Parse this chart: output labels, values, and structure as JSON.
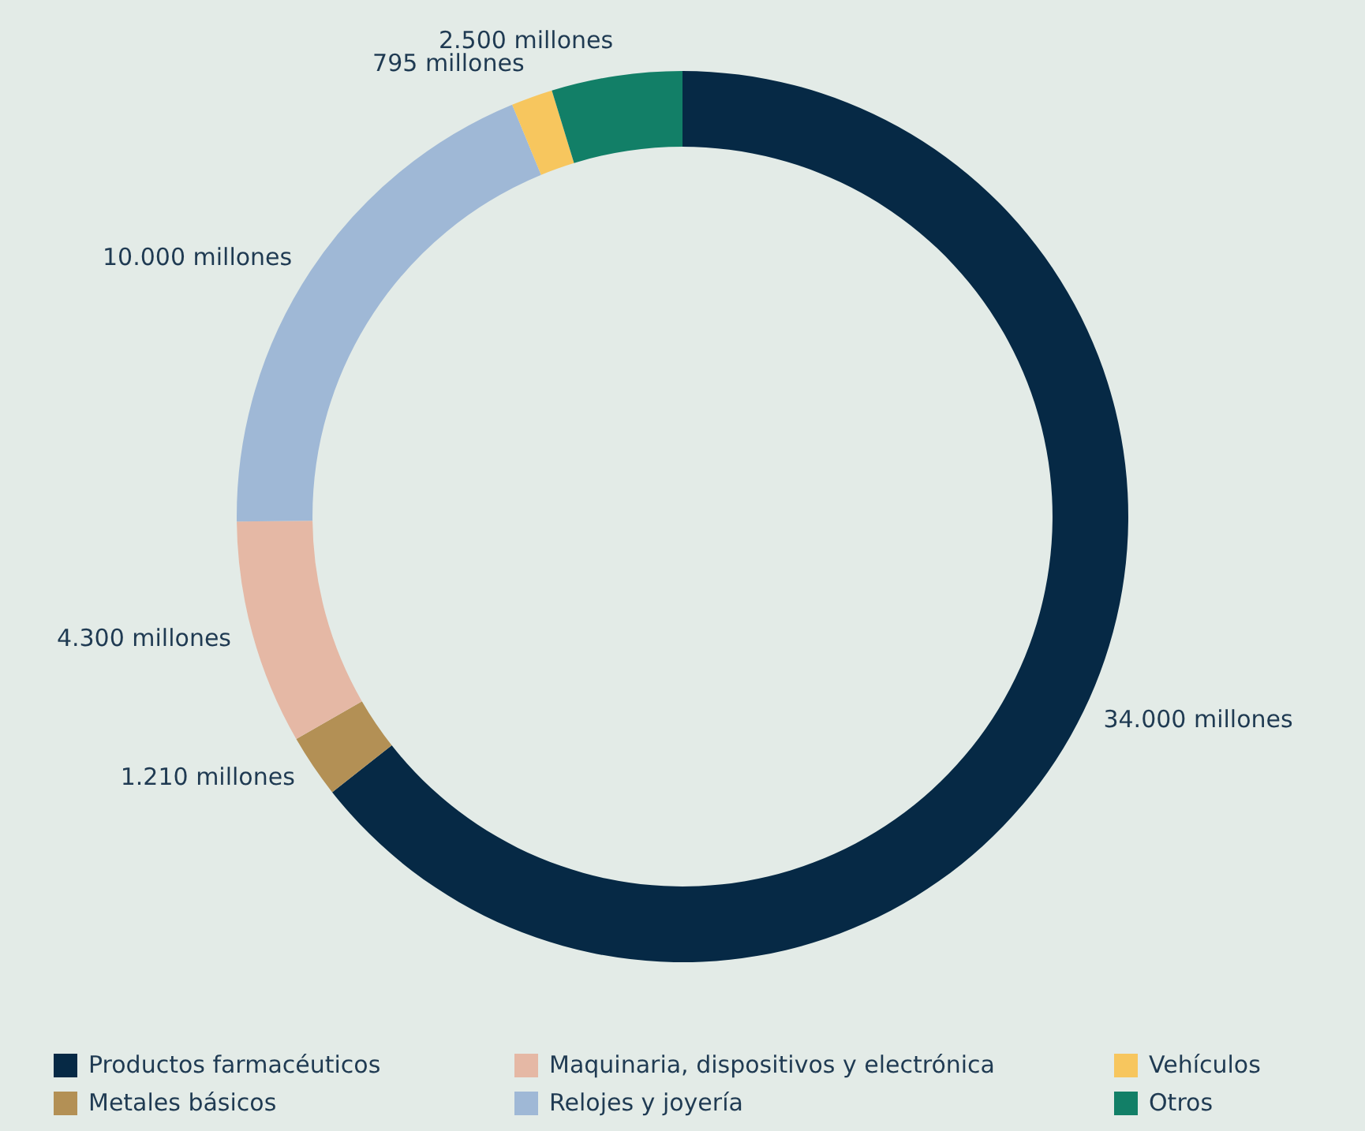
{
  "chart_data": {
    "type": "donut",
    "categories": [
      "Productos farmacéuticos",
      "Metales básicos",
      "Maquinaria, dispositivos y electrónica",
      "Relojes y joyería",
      "Vehículos",
      "Otros"
    ],
    "values": [
      34000,
      1210,
      4300,
      10000,
      795,
      2500
    ],
    "value_labels": [
      "34.000 millones",
      "1.210 millones",
      "4.300 millones",
      "10.000 millones",
      "795 millones",
      "2.500 millones"
    ],
    "colors": [
      "#062945",
      "#b39055",
      "#e5b8a5",
      "#9fb8d6",
      "#f7c65e",
      "#127f67"
    ],
    "legend": "bottom"
  }
}
